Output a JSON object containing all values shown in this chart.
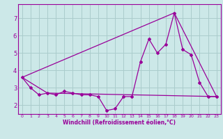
{
  "bg_color": "#cce8e8",
  "grid_color": "#aacccc",
  "line_color": "#990099",
  "xlabel": "Windchill (Refroidissement éolien,°C)",
  "xlim": [
    -0.5,
    23.5
  ],
  "ylim": [
    1.5,
    7.8
  ],
  "yticks": [
    2,
    3,
    4,
    5,
    6,
    7
  ],
  "xticks": [
    0,
    1,
    2,
    3,
    4,
    5,
    6,
    7,
    8,
    9,
    10,
    11,
    12,
    13,
    14,
    15,
    16,
    17,
    18,
    19,
    20,
    21,
    22,
    23
  ],
  "series1_x": [
    0,
    1,
    2,
    3,
    4,
    5,
    6,
    7,
    8,
    9,
    10,
    11,
    12,
    13,
    14,
    15,
    16,
    17,
    18,
    19,
    20,
    21,
    22,
    23
  ],
  "series1_y": [
    3.6,
    3.0,
    2.6,
    2.7,
    2.6,
    2.8,
    2.7,
    2.6,
    2.6,
    2.5,
    1.7,
    1.8,
    2.5,
    2.5,
    4.5,
    5.8,
    5.0,
    5.5,
    7.3,
    5.2,
    4.9,
    3.3,
    2.5,
    2.5
  ],
  "series2_x": [
    0,
    3,
    23
  ],
  "series2_y": [
    3.6,
    2.7,
    2.5
  ],
  "series3_x": [
    0,
    18,
    23
  ],
  "series3_y": [
    3.6,
    7.3,
    2.5
  ]
}
